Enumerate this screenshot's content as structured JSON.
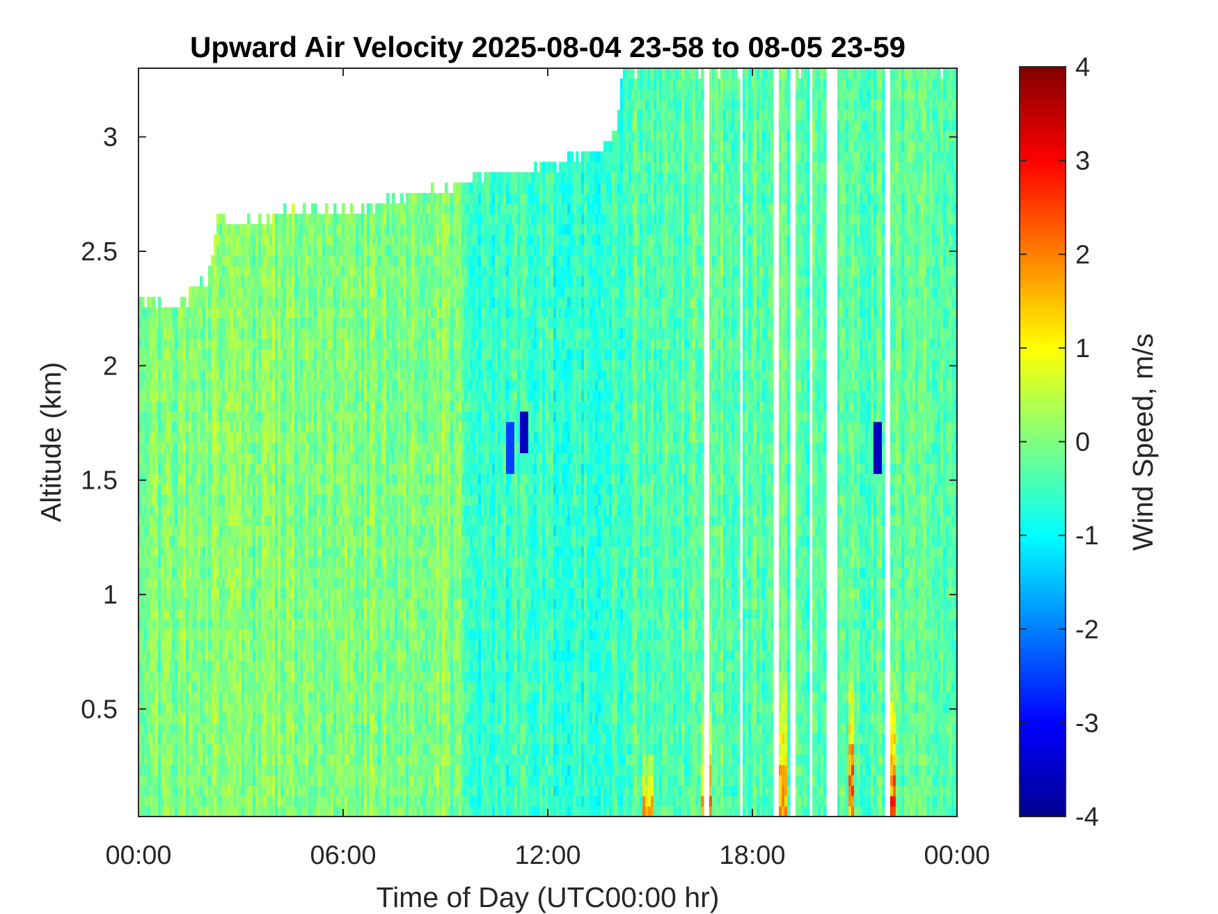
{
  "chart_data": {
    "type": "heatmap",
    "title": "Upward Air Velocity 2025-08-04 23-58 to 08-05 23-59",
    "xlabel": "Time of Day (UTC00:00 hr)",
    "ylabel": "Altitude (km)",
    "colorbar_label": "Wind Speed, m/s",
    "colormap": "jet",
    "xlim_hours": [
      0,
      24
    ],
    "ylim_km": [
      0.03,
      3.3
    ],
    "clim": [
      -4,
      4
    ],
    "x_ticks": [
      {
        "label": "00:00",
        "hour": 0
      },
      {
        "label": "06:00",
        "hour": 6
      },
      {
        "label": "12:00",
        "hour": 12
      },
      {
        "label": "18:00",
        "hour": 18
      },
      {
        "label": "00:00",
        "hour": 24
      }
    ],
    "y_ticks": [
      {
        "label": "0.5",
        "km": 0.5
      },
      {
        "label": "1",
        "km": 1
      },
      {
        "label": "1.5",
        "km": 1.5
      },
      {
        "label": "2",
        "km": 2
      },
      {
        "label": "2.5",
        "km": 2.5
      },
      {
        "label": "3",
        "km": 3
      }
    ],
    "colorbar_ticks": [
      {
        "label": "4",
        "value": 4
      },
      {
        "label": "3",
        "value": 3
      },
      {
        "label": "2",
        "value": 2
      },
      {
        "label": "1",
        "value": 1
      },
      {
        "label": "0",
        "value": 0
      },
      {
        "label": "-1",
        "value": -1
      },
      {
        "label": "-2",
        "value": -2
      },
      {
        "label": "-3",
        "value": -3
      },
      {
        "label": "-4",
        "value": -4
      }
    ],
    "data_top_km": [
      {
        "hour": 0.0,
        "km": 2.3
      },
      {
        "hour": 0.5,
        "km": 2.28
      },
      {
        "hour": 1.0,
        "km": 2.25
      },
      {
        "hour": 1.5,
        "km": 2.3
      },
      {
        "hour": 2.0,
        "km": 2.38
      },
      {
        "hour": 2.3,
        "km": 2.63
      },
      {
        "hour": 3.5,
        "km": 2.63
      },
      {
        "hour": 4.5,
        "km": 2.68
      },
      {
        "hour": 6.5,
        "km": 2.68
      },
      {
        "hour": 8.0,
        "km": 2.75
      },
      {
        "hour": 9.5,
        "km": 2.8
      },
      {
        "hour": 10.5,
        "km": 2.85
      },
      {
        "hour": 12.0,
        "km": 2.87
      },
      {
        "hour": 13.5,
        "km": 2.95
      },
      {
        "hour": 14.0,
        "km": 3.0
      },
      {
        "hour": 14.2,
        "km": 3.3
      },
      {
        "hour": 24.0,
        "km": 3.3
      }
    ],
    "regions": [
      {
        "hour_start": 0.0,
        "hour_end": 9.5,
        "typical_mps": 0.0
      },
      {
        "hour_start": 9.5,
        "hour_end": 14.2,
        "typical_mps": -0.6
      },
      {
        "hour_start": 14.2,
        "hour_end": 24.0,
        "typical_mps": -0.3
      }
    ],
    "updraft_events": [
      {
        "hour_start": 14.8,
        "hour_end": 15.1,
        "km_top": 0.35,
        "peak_mps": 2.5
      },
      {
        "hour_start": 16.5,
        "hour_end": 16.8,
        "km_top": 0.6,
        "peak_mps": 2.5
      },
      {
        "hour_start": 18.7,
        "hour_end": 19.0,
        "km_top": 0.7,
        "peak_mps": 2.5
      },
      {
        "hour_start": 20.8,
        "hour_end": 21.0,
        "km_top": 0.8,
        "peak_mps": 3.0
      },
      {
        "hour_start": 21.9,
        "hour_end": 22.2,
        "km_top": 0.7,
        "peak_mps": 3.5
      }
    ],
    "downdraft_events": [
      {
        "hour": 10.9,
        "km_low": 1.55,
        "km_high": 1.75,
        "min_mps": -2.5
      },
      {
        "hour": 11.3,
        "km_low": 1.6,
        "km_high": 1.8,
        "min_mps": -3.5
      },
      {
        "hour": 21.7,
        "km_low": 1.55,
        "km_high": 1.75,
        "min_mps": -3.5
      }
    ],
    "missing_columns_hours": [
      [
        16.6,
        16.75
      ],
      [
        17.6,
        17.7
      ],
      [
        18.6,
        18.75
      ],
      [
        19.1,
        19.25
      ],
      [
        19.65,
        19.75
      ],
      [
        20.2,
        20.45
      ],
      [
        21.9,
        22.0
      ]
    ]
  }
}
